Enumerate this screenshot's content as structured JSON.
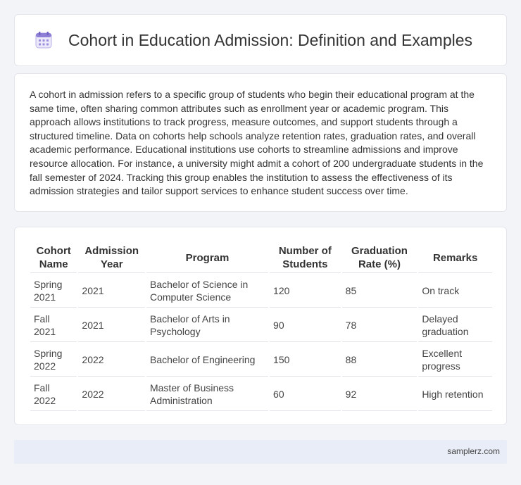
{
  "header": {
    "title": "Cohort in Education Admission: Definition and Examples",
    "icon": "calendar-icon"
  },
  "description": "A cohort in admission refers to a specific group of students who begin their educational program at the same time, often sharing common attributes such as enrollment year or academic program. This approach allows institutions to track progress, measure outcomes, and support students through a structured timeline. Data on cohorts help schools analyze retention rates, graduation rates, and overall academic performance. Educational institutions use cohorts to streamline admissions and improve resource allocation. For instance, a university might admit a cohort of 200 undergraduate students in the fall semester of 2024. Tracking this group enables the institution to assess the effectiveness of its admission strategies and tailor support services to enhance student success over time.",
  "table": {
    "columns": [
      "Cohort Name",
      "Admission Year",
      "Program",
      "Number of Students",
      "Graduation Rate (%)",
      "Remarks"
    ],
    "rows": [
      [
        "Spring 2021",
        "2021",
        "Bachelor of Science in Computer Science",
        "120",
        "85",
        "On track"
      ],
      [
        "Fall 2021",
        "2021",
        "Bachelor of Arts in Psychology",
        "90",
        "78",
        "Delayed graduation"
      ],
      [
        "Spring 2022",
        "2022",
        "Bachelor of Engineering",
        "150",
        "88",
        "Excellent progress"
      ],
      [
        "Fall 2022",
        "2022",
        "Master of Business Administration",
        "60",
        "92",
        "High retention"
      ]
    ]
  },
  "footer": {
    "source": "samplerz.com"
  },
  "colors": {
    "page_background": "#f3f4f8",
    "footer_background": "#e9edf7",
    "icon_accent": "#8f7fd6"
  }
}
